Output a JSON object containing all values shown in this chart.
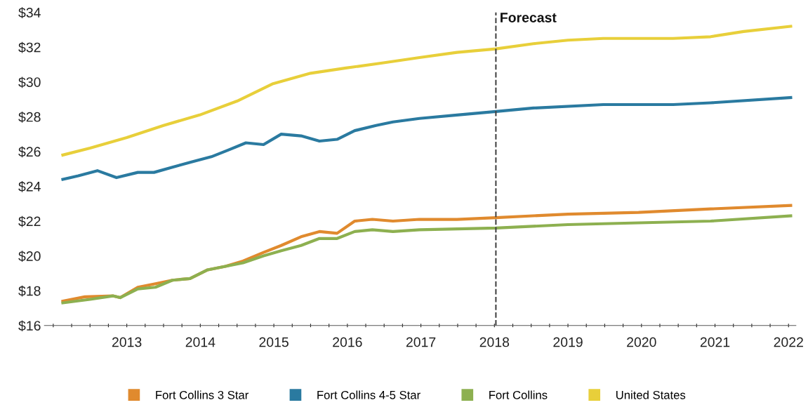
{
  "chart_data": {
    "type": "line",
    "ylim": [
      16,
      34
    ],
    "yticks": [
      {
        "value": 16,
        "label": "$16"
      },
      {
        "value": 18,
        "label": "$18"
      },
      {
        "value": 20,
        "label": "$20"
      },
      {
        "value": 22,
        "label": "$22"
      },
      {
        "value": 24,
        "label": "$24"
      },
      {
        "value": 26,
        "label": "$26"
      },
      {
        "value": 28,
        "label": "$28"
      },
      {
        "value": 30,
        "label": "$30"
      },
      {
        "value": 32,
        "label": "$32"
      },
      {
        "value": 34,
        "label": "$34"
      }
    ],
    "xlim": [
      2012.38,
      2022.6
    ],
    "xticks": [
      {
        "value": 2012.5,
        "label": null
      },
      {
        "value": 2012.75,
        "label": null
      },
      {
        "value": 2013,
        "label": null
      },
      {
        "value": 2013.25,
        "label": null
      },
      {
        "value": 2013.5,
        "label": "2013"
      },
      {
        "value": 2013.75,
        "label": null
      },
      {
        "value": 2014,
        "label": null
      },
      {
        "value": 2014.25,
        "label": null
      },
      {
        "value": 2014.5,
        "label": "2014"
      },
      {
        "value": 2014.75,
        "label": null
      },
      {
        "value": 2015,
        "label": null
      },
      {
        "value": 2015.25,
        "label": null
      },
      {
        "value": 2015.5,
        "label": "2015"
      },
      {
        "value": 2015.75,
        "label": null
      },
      {
        "value": 2016,
        "label": null
      },
      {
        "value": 2016.25,
        "label": null
      },
      {
        "value": 2016.5,
        "label": "2016"
      },
      {
        "value": 2016.75,
        "label": null
      },
      {
        "value": 2017,
        "label": null
      },
      {
        "value": 2017.25,
        "label": null
      },
      {
        "value": 2017.5,
        "label": "2017"
      },
      {
        "value": 2017.75,
        "label": null
      },
      {
        "value": 2018,
        "label": null
      },
      {
        "value": 2018.25,
        "label": null
      },
      {
        "value": 2018.5,
        "label": "2018"
      },
      {
        "value": 2018.75,
        "label": null
      },
      {
        "value": 2019,
        "label": null
      },
      {
        "value": 2019.25,
        "label": null
      },
      {
        "value": 2019.5,
        "label": "2019"
      },
      {
        "value": 2019.75,
        "label": null
      },
      {
        "value": 2020,
        "label": null
      },
      {
        "value": 2020.25,
        "label": null
      },
      {
        "value": 2020.5,
        "label": "2020"
      },
      {
        "value": 2020.75,
        "label": null
      },
      {
        "value": 2021,
        "label": null
      },
      {
        "value": 2021.25,
        "label": null
      },
      {
        "value": 2021.5,
        "label": "2021"
      },
      {
        "value": 2021.75,
        "label": null
      },
      {
        "value": 2022,
        "label": null
      },
      {
        "value": 2022.25,
        "label": null
      },
      {
        "value": 2022.5,
        "label": "2022"
      }
    ],
    "grid": false,
    "legend": "bottom",
    "marker": "none",
    "line_style": "solid",
    "ref_lines": [
      {
        "axis": "x",
        "value": 2018.52,
        "label": "Forecast",
        "color": "#444444",
        "line_style": "dashed"
      }
    ],
    "series": [
      {
        "name": "Fort Collins 3 Star",
        "color": "#e08a2e",
        "x": [
          2012.63,
          2012.93,
          2013.31,
          2013.41,
          2013.65,
          2013.89,
          2014.12,
          2014.36,
          2014.6,
          2014.84,
          2015.08,
          2015.36,
          2015.6,
          2015.87,
          2016.12,
          2016.36,
          2016.6,
          2016.84,
          2017.12,
          2017.48,
          2017.99,
          2018.52,
          2019.5,
          2020.46,
          2021.44,
          2022.53
        ],
        "values": [
          17.4,
          17.65,
          17.7,
          17.6,
          18.2,
          18.4,
          18.6,
          18.7,
          19.2,
          19.4,
          19.7,
          20.2,
          20.6,
          21.1,
          21.4,
          21.3,
          22.0,
          22.1,
          22.0,
          22.1,
          22.1,
          22.2,
          22.4,
          22.5,
          22.7,
          22.9
        ]
      },
      {
        "name": "Fort Collins 4-5 Star",
        "color": "#2a7aa0",
        "x": [
          2012.63,
          2012.84,
          2013.1,
          2013.36,
          2013.65,
          2013.87,
          2014.12,
          2014.38,
          2014.65,
          2014.89,
          2015.12,
          2015.36,
          2015.6,
          2015.87,
          2016.12,
          2016.36,
          2016.6,
          2016.89,
          2017.12,
          2017.48,
          2017.99,
          2018.52,
          2019.03,
          2019.98,
          2020.93,
          2021.44,
          2022.53
        ],
        "values": [
          24.4,
          24.6,
          24.9,
          24.5,
          24.8,
          24.8,
          25.1,
          25.4,
          25.7,
          26.1,
          26.5,
          26.4,
          27.0,
          26.9,
          26.6,
          26.7,
          27.2,
          27.5,
          27.7,
          27.9,
          28.1,
          28.3,
          28.5,
          28.7,
          28.7,
          28.8,
          29.1
        ]
      },
      {
        "name": "Fort Collins",
        "color": "#8db050",
        "x": [
          2012.63,
          2013.0,
          2013.31,
          2013.41,
          2013.65,
          2013.89,
          2014.12,
          2014.36,
          2014.6,
          2014.84,
          2015.08,
          2015.36,
          2015.6,
          2015.87,
          2016.12,
          2016.36,
          2016.6,
          2016.84,
          2017.12,
          2017.48,
          2018.52,
          2019.5,
          2020.46,
          2021.44,
          2022.53
        ],
        "values": [
          17.3,
          17.5,
          17.7,
          17.6,
          18.1,
          18.2,
          18.6,
          18.7,
          19.2,
          19.4,
          19.6,
          20.0,
          20.3,
          20.6,
          21.0,
          21.0,
          21.4,
          21.5,
          21.4,
          21.5,
          21.6,
          21.8,
          21.9,
          22.0,
          22.3
        ]
      },
      {
        "name": "United States",
        "color": "#e8cf3a",
        "x": [
          2012.63,
          2013.0,
          2013.5,
          2014.0,
          2014.49,
          2015.0,
          2015.49,
          2016.0,
          2016.48,
          2016.99,
          2017.48,
          2017.99,
          2018.52,
          2019.03,
          2019.5,
          2019.98,
          2020.46,
          2020.93,
          2021.44,
          2021.89,
          2022.53
        ],
        "values": [
          25.8,
          26.2,
          26.8,
          27.5,
          28.1,
          28.9,
          29.9,
          30.5,
          30.8,
          31.1,
          31.4,
          31.7,
          31.9,
          32.2,
          32.4,
          32.5,
          32.5,
          32.5,
          32.6,
          32.9,
          33.2
        ]
      }
    ]
  }
}
